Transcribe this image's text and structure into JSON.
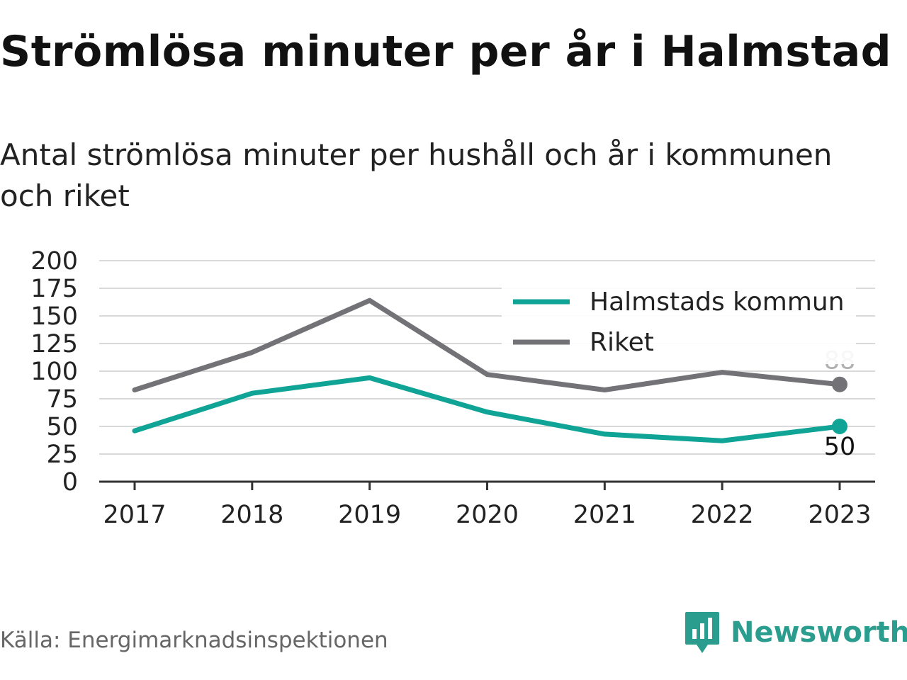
{
  "title": "Strömlösa minuter per år i Halmstad",
  "subtitle": "Antal strömlösa minuter per hushåll och år i kommunen och riket",
  "source": "Källa: Energimarknadsinspektionen",
  "brand": {
    "name": "Newsworthy",
    "icon": "newsworthy-logo-icon",
    "color": "#2a9d8f"
  },
  "chart_data": {
    "type": "line",
    "x": [
      "2017",
      "2018",
      "2019",
      "2020",
      "2021",
      "2022",
      "2023"
    ],
    "ylim": [
      0,
      200
    ],
    "yticks": [
      "0",
      "25",
      "50",
      "75",
      "100",
      "125",
      "150",
      "175",
      "200"
    ],
    "grid": true,
    "legend": "top-right",
    "series": [
      {
        "name": "Halmstads kommun",
        "color": "#10a497",
        "values": [
          46,
          80,
          94,
          63,
          43,
          37,
          50
        ],
        "end_label": "50"
      },
      {
        "name": "Riket",
        "color": "#737277",
        "values": [
          83,
          117,
          164,
          97,
          83,
          99,
          88
        ],
        "end_label": "88"
      }
    ]
  }
}
